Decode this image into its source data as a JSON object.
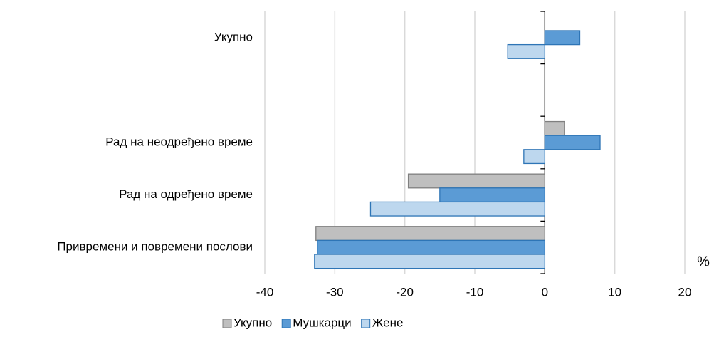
{
  "chart_data": {
    "type": "bar",
    "orientation": "horizontal",
    "categories": [
      "Укупно",
      null,
      "Рад на неодређено време",
      "Рад на одређено време",
      "Привремени и повремени послови"
    ],
    "series": [
      {
        "name": "Укупно",
        "color": "#bfbfbf",
        "edge": "#7f7f7f",
        "values": [
          null,
          null,
          2.8,
          -19.5,
          -32.7
        ]
      },
      {
        "name": "Мушкарци",
        "color": "#5b9bd5",
        "edge": "#2e75b6",
        "values": [
          5,
          null,
          7.9,
          -15,
          -32.5
        ]
      },
      {
        "name": "Жене",
        "color": "#bdd7ee",
        "edge": "#2e75b6",
        "values": [
          -5.3,
          null,
          -3,
          -24.9,
          -32.9
        ]
      }
    ],
    "xlabel": "%",
    "xlim": [
      -40,
      20
    ],
    "xticks": [
      -40,
      -30,
      -20,
      -10,
      0,
      10,
      20
    ],
    "grid": true,
    "legend": "bottom"
  }
}
